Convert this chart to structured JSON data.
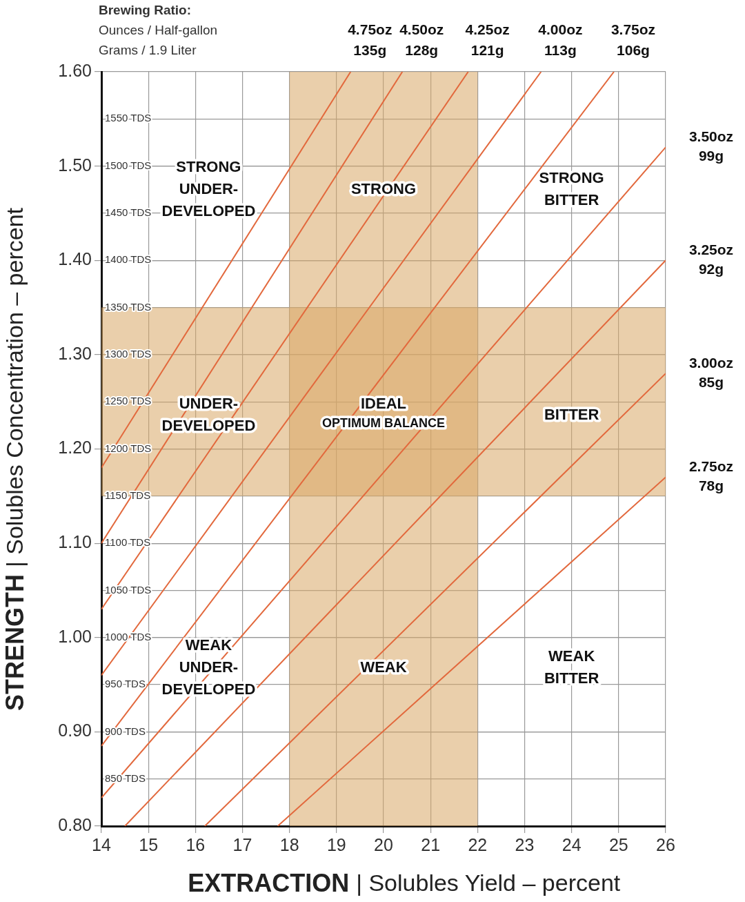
{
  "chart_data": {
    "type": "line",
    "xlabel": "EXTRACTION | Solubles Yield – percent",
    "ylabel": "STRENGTH | Solubles Concentration – percent",
    "xlim": [
      14,
      26
    ],
    "xticks": [
      14,
      15,
      16,
      17,
      18,
      19,
      20,
      21,
      22,
      23,
      24,
      25,
      26
    ],
    "ylim": [
      0.8,
      1.6
    ],
    "yticks": [
      {
        "value": 0.8,
        "label": "0.80"
      },
      {
        "value": 0.9,
        "label": "0.90"
      },
      {
        "value": 1.0,
        "label": "1.00"
      },
      {
        "value": 1.1,
        "label": "1.10"
      },
      {
        "value": 1.2,
        "label": "1.20"
      },
      {
        "value": 1.3,
        "label": "1.30"
      },
      {
        "value": 1.4,
        "label": "1.40"
      },
      {
        "value": 1.5,
        "label": "1.50"
      },
      {
        "value": 1.6,
        "label": "1.60"
      }
    ],
    "y2lim": [
      800,
      1600
    ],
    "y2ticks": [
      {
        "value": 850,
        "label": "850 TDS"
      },
      {
        "value": 900,
        "label": "900 TDS"
      },
      {
        "value": 950,
        "label": "950 TDS"
      },
      {
        "value": 1000,
        "label": "1000 TDS"
      },
      {
        "value": 1050,
        "label": "1050 TDS"
      },
      {
        "value": 1100,
        "label": "1100 TDS"
      },
      {
        "value": 1150,
        "label": "1150 TDS"
      },
      {
        "value": 1200,
        "label": "1200 TDS"
      },
      {
        "value": 1250,
        "label": "1250 TDS"
      },
      {
        "value": 1300,
        "label": "1300 TDS"
      },
      {
        "value": 1350,
        "label": "1350 TDS"
      },
      {
        "value": 1400,
        "label": "1400 TDS"
      },
      {
        "value": 1450,
        "label": "1450 TDS"
      },
      {
        "value": 1500,
        "label": "1500 TDS"
      },
      {
        "value": 1550,
        "label": "1550 TDS"
      }
    ],
    "grid": true,
    "series": [
      {
        "name": "4.75oz\n135g",
        "color": "#e2683c",
        "x": [
          14,
          19.3
        ],
        "values": [
          1.18,
          1.6
        ]
      },
      {
        "name": "4.50oz\n128g",
        "color": "#e2683c",
        "x": [
          14,
          20.4
        ],
        "values": [
          1.1,
          1.6
        ]
      },
      {
        "name": "4.25oz\n121g",
        "color": "#e2683c",
        "x": [
          14,
          21.8
        ],
        "values": [
          1.03,
          1.6
        ]
      },
      {
        "name": "4.00oz\n113g",
        "color": "#e2683c",
        "x": [
          14,
          23.35
        ],
        "values": [
          0.96,
          1.6
        ]
      },
      {
        "name": "3.75oz\n106g",
        "color": "#e2683c",
        "x": [
          14,
          24.9
        ],
        "values": [
          0.885,
          1.6
        ]
      },
      {
        "name": "3.50oz\n99g",
        "color": "#e2683c",
        "x": [
          14,
          26
        ],
        "values": [
          0.83,
          1.52
        ]
      },
      {
        "name": "3.25oz\n92g",
        "color": "#e2683c",
        "x": [
          14.5,
          26
        ],
        "values": [
          0.8,
          1.4
        ]
      },
      {
        "name": "3.00oz\n85g",
        "color": "#e2683c",
        "x": [
          16.2,
          26
        ],
        "values": [
          0.8,
          1.28
        ]
      },
      {
        "name": "2.75oz\n78g",
        "color": "#e2683c",
        "x": [
          17.75,
          26
        ],
        "values": [
          0.8,
          1.17
        ]
      }
    ],
    "bands": [
      {
        "axis": "x",
        "from": 18,
        "to": 22,
        "color": "#d9a866"
      },
      {
        "axis": "y",
        "from": 1.15,
        "to": 1.35,
        "color": "#d9a866"
      }
    ],
    "annotations": [
      "Brewing Ratio:",
      "Ounces / Half-gallon",
      "Grams / 1.9 Liter",
      "STRONG\nUNDER-\nDEVELOPED",
      "STRONG",
      "STRONG\nBITTER",
      "UNDER-\nDEVELOPED",
      "IDEAL\nOPTIMUM BALANCE",
      "BITTER",
      "WEAK\nUNDER-\nDEVELOPED",
      "WEAK",
      "WEAK\nBITTER"
    ]
  }
}
